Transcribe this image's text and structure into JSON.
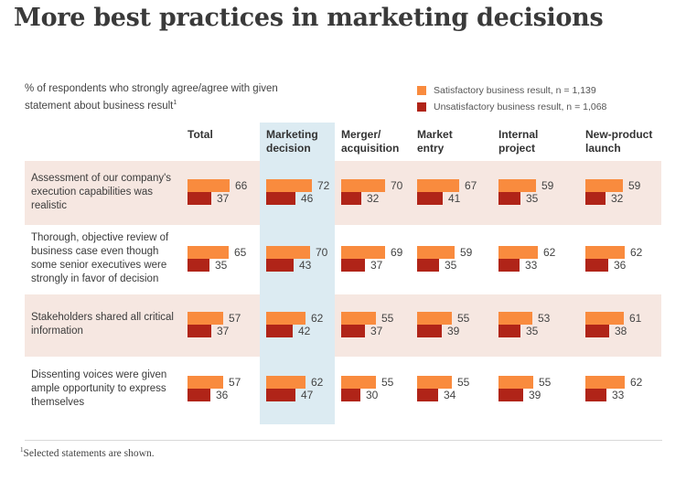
{
  "header": {
    "title": "More best practices in marketing decisions"
  },
  "colors": {
    "satisfactory": "#f98b3e",
    "unsatisfactory": "#b02418",
    "highlight_column": "#dcebf2",
    "row_band": "#f6e7e1"
  },
  "chart_data": {
    "type": "bar",
    "orientation": "horizontal",
    "title": "More best practices in marketing decisions",
    "subtitle": "% of respondents who strongly agree/agree with given statement about business result",
    "subtitle_footnote_mark": "1",
    "legend_position": "top-right",
    "legend": [
      {
        "name": "Satisfactory business result, n = 1,139",
        "color": "#f98b3e"
      },
      {
        "name": "Unsatisfactory business result, n = 1,068",
        "color": "#b02418"
      }
    ],
    "columns": [
      "Total",
      "Marketing decision",
      "Merger/ acquisition",
      "Market entry",
      "Internal project",
      "New-product launch"
    ],
    "column_labels": [
      [
        "Total"
      ],
      [
        "Marketing",
        "decision"
      ],
      [
        "Merger/",
        "acquisition"
      ],
      [
        "Market",
        "entry"
      ],
      [
        "Internal",
        "project"
      ],
      [
        "New-product",
        "launch"
      ]
    ],
    "highlighted_column": "Marketing decision",
    "rows": [
      {
        "statement": "Assessment of our company's execution capabilities was realistic",
        "satisfactory": [
          66,
          72,
          70,
          67,
          59,
          59
        ],
        "unsatisfactory": [
          37,
          46,
          32,
          41,
          35,
          32
        ]
      },
      {
        "statement": "Thorough, objective review of business case even though some senior executives were strongly in favor of decision",
        "satisfactory": [
          65,
          70,
          69,
          59,
          62,
          62
        ],
        "unsatisfactory": [
          35,
          43,
          37,
          35,
          33,
          36
        ]
      },
      {
        "statement": "Stakeholders shared all critical information",
        "satisfactory": [
          57,
          62,
          55,
          55,
          53,
          61
        ],
        "unsatisfactory": [
          37,
          42,
          37,
          39,
          35,
          38
        ]
      },
      {
        "statement": "Dissenting voices were given ample opportunity to express themselves",
        "satisfactory": [
          57,
          62,
          55,
          55,
          55,
          62
        ],
        "unsatisfactory": [
          36,
          47,
          30,
          34,
          39,
          33
        ]
      }
    ],
    "unit": "%"
  },
  "footnote": {
    "mark": "1",
    "text": "Selected statements are shown."
  }
}
